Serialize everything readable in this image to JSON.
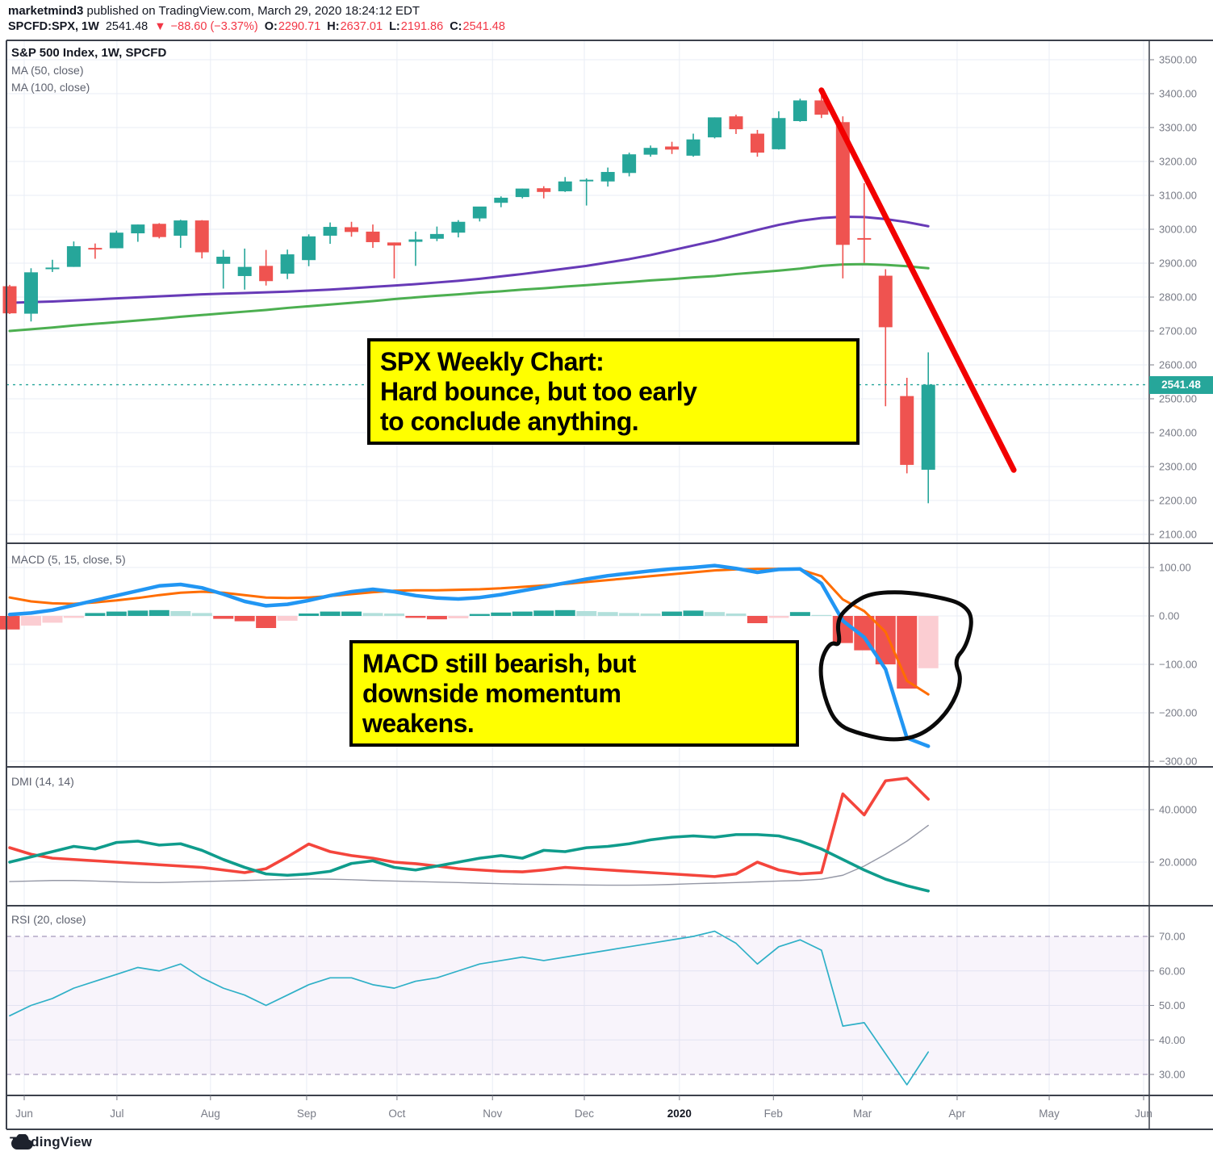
{
  "header": {
    "username": "marketmind3",
    "published": " published on TradingView.com, March 29, 2020 18:24:12 EDT",
    "symbol": "SPCFD:SPX, 1W",
    "last": "2541.48",
    "direction": "▼",
    "change": "−88.60 (−3.37%)",
    "o_label": "O:",
    "open": "2290.71",
    "h_label": "H:",
    "high": "2637.01",
    "l_label": "L:",
    "low": "2191.86",
    "c_label": "C:",
    "close": "2541.48"
  },
  "panes": {
    "main_title": "S&P 500 Index, 1W, SPCFD",
    "ma50_label": "MA (50, close)",
    "ma100_label": "MA (100, close)",
    "macd_label": "MACD (5, 15, close, 5)",
    "dmi_label": "DMI (14, 14)",
    "rsi_label": "RSI (20, close)"
  },
  "annotations": {
    "spx": {
      "lines": [
        "SPX Weekly Chart:",
        "Hard bounce, but too early",
        "to conclude anything."
      ]
    },
    "macd": {
      "lines": [
        "MACD still bearish, but",
        "downside momentum",
        "weakens."
      ]
    }
  },
  "price_label": "2541.48",
  "footer": {
    "brand": "TradingView"
  },
  "colors": {
    "up": "#26a69a",
    "down": "#ef5350",
    "ma50": "#673ab7",
    "ma100": "#4caf50",
    "macd": "#2196f3",
    "signal": "#ff6d00",
    "hist_pos": "#26a69a",
    "hist_pos_weak": "#b2dfdb",
    "hist_neg": "#ef5350",
    "hist_neg_weak": "#fbcdd2",
    "plus_di": "#0f9c8c",
    "minus_di": "#f4453c",
    "adx": "#9598a6",
    "rsi": "#2fb0c7",
    "rsi_band": "rgba(155,100,200,0.07)",
    "rsi_band_line": "#b3a8c6",
    "grid": "#e9edf5",
    "frame": "#3c414c",
    "axis_text": "#787b86",
    "trendline": "#f20000",
    "blob": "#0a0a0a",
    "price_line": "#26a69a",
    "accent_red": "#f23645",
    "dark_text": "#131722"
  },
  "chart_data": {
    "type": "table",
    "description": "SPX weekly candles May 2019 - Mar 2020 with MA50/MA100 overlays, MACD(5,15,close,5), DMI(14,14), RSI(20)",
    "weeks": 44,
    "candles_ohlc": [
      [
        2832,
        2836,
        2750,
        2752
      ],
      [
        2751,
        2885,
        2728,
        2873
      ],
      [
        2886,
        2910,
        2874,
        2887
      ],
      [
        2889,
        2964,
        2889,
        2950
      ],
      [
        2945,
        2958,
        2913,
        2942
      ],
      [
        2944,
        2996,
        2944,
        2990
      ],
      [
        2988,
        3014,
        2963,
        3014
      ],
      [
        3016,
        3018,
        2973,
        2977
      ],
      [
        2981,
        3028,
        2945,
        3026
      ],
      [
        3026,
        3027,
        2914,
        2932
      ],
      [
        2898,
        2939,
        2825,
        2919
      ],
      [
        2862,
        2943,
        2822,
        2889
      ],
      [
        2892,
        2939,
        2834,
        2847
      ],
      [
        2869,
        2940,
        2853,
        2926
      ],
      [
        2909,
        2985,
        2891,
        2979
      ],
      [
        2981,
        3020,
        2957,
        3007
      ],
      [
        3006,
        3022,
        2978,
        2992
      ],
      [
        2993,
        3014,
        2945,
        2962
      ],
      [
        2961,
        2961,
        2855,
        2952
      ],
      [
        2963,
        2993,
        2892,
        2970
      ],
      [
        2972,
        3008,
        2965,
        2986
      ],
      [
        2990,
        3027,
        2976,
        3022
      ],
      [
        3032,
        3066,
        3023,
        3067
      ],
      [
        3078,
        3097,
        3065,
        3093
      ],
      [
        3095,
        3120,
        3091,
        3120
      ],
      [
        3121,
        3127,
        3091,
        3110
      ],
      [
        3112,
        3154,
        3110,
        3141
      ],
      [
        3143,
        3150,
        3070,
        3146
      ],
      [
        3141,
        3182,
        3126,
        3169
      ],
      [
        3166,
        3226,
        3156,
        3221
      ],
      [
        3220,
        3247,
        3214,
        3240
      ],
      [
        3244,
        3258,
        3222,
        3235
      ],
      [
        3217,
        3282,
        3214,
        3265
      ],
      [
        3271,
        3330,
        3268,
        3330
      ],
      [
        3333,
        3338,
        3281,
        3295
      ],
      [
        3282,
        3293,
        3214,
        3226
      ],
      [
        3236,
        3348,
        3235,
        3328
      ],
      [
        3319,
        3385,
        3317,
        3380
      ],
      [
        3380,
        3394,
        3328,
        3338
      ],
      [
        3316,
        3333,
        2855,
        2954
      ],
      [
        2974,
        3136,
        2901,
        2972
      ],
      [
        2863,
        2882,
        2478,
        2711
      ],
      [
        2508,
        2562,
        2280,
        2305
      ],
      [
        2290.71,
        2637.01,
        2191.86,
        2541.48
      ]
    ],
    "ma50": [
      2783,
      2785,
      2787,
      2790,
      2793,
      2796,
      2799,
      2802,
      2805,
      2808,
      2810,
      2812,
      2814,
      2816,
      2819,
      2822,
      2826,
      2830,
      2834,
      2838,
      2843,
      2848,
      2854,
      2861,
      2868,
      2876,
      2884,
      2892,
      2902,
      2912,
      2924,
      2938,
      2952,
      2966,
      2982,
      2998,
      3013,
      3025,
      3033,
      3037,
      3036,
      3030,
      3021,
      3009
    ],
    "ma100": [
      2700,
      2705,
      2710,
      2716,
      2721,
      2726,
      2731,
      2736,
      2742,
      2747,
      2752,
      2757,
      2762,
      2768,
      2773,
      2778,
      2783,
      2788,
      2794,
      2799,
      2804,
      2808,
      2813,
      2817,
      2822,
      2826,
      2831,
      2835,
      2840,
      2844,
      2849,
      2853,
      2858,
      2862,
      2868,
      2873,
      2878,
      2884,
      2892,
      2896,
      2897,
      2895,
      2891,
      2885
    ],
    "macd_line": [
      3,
      6,
      12,
      22,
      32,
      42,
      52,
      62,
      65,
      58,
      45,
      30,
      21,
      24,
      32,
      42,
      50,
      55,
      50,
      42,
      37,
      35,
      38,
      44,
      52,
      60,
      68,
      76,
      83,
      88,
      93,
      97,
      100,
      104,
      98,
      90,
      96,
      97,
      67,
      -10,
      -44,
      -110,
      -252,
      -269
    ],
    "signal_line": [
      38,
      30,
      26,
      25,
      28,
      32,
      37,
      43,
      48,
      50,
      48,
      43,
      38,
      37,
      38,
      41,
      45,
      49,
      52,
      53,
      53,
      54,
      55,
      57,
      60,
      63,
      66,
      70,
      74,
      78,
      82,
      86,
      90,
      94,
      96,
      97,
      97,
      96,
      82,
      34,
      10,
      -33,
      -134,
      -162
    ],
    "histogram": [
      -28,
      -20,
      -14,
      -4,
      6,
      9,
      11,
      12,
      10,
      6,
      -6,
      -11,
      -25,
      -10,
      5,
      9,
      9,
      6,
      5,
      -4,
      -7,
      -5,
      4,
      7,
      9,
      11,
      12,
      10,
      8,
      6,
      5,
      9,
      11,
      8,
      5,
      -15,
      -4,
      8,
      2,
      -56,
      -71,
      -100,
      -150,
      -108
    ],
    "plus_di": [
      20,
      22,
      24,
      26,
      25,
      27.5,
      28,
      26.5,
      27,
      24.5,
      21,
      18,
      15.5,
      15,
      15.5,
      16.5,
      19.5,
      20.5,
      18,
      17,
      18.5,
      20,
      21.5,
      22.5,
      21.5,
      24.5,
      24,
      25.5,
      26,
      27,
      28.5,
      29.5,
      30,
      29.5,
      30.5,
      30.5,
      30,
      28,
      25,
      21,
      17,
      13.5,
      11,
      9
    ],
    "minus_di": [
      25.5,
      23,
      21.5,
      21,
      20.5,
      20,
      19.5,
      19,
      18.5,
      18,
      17,
      16,
      17.5,
      22,
      26.9,
      24,
      22.5,
      21.5,
      20,
      19.4,
      18.5,
      17.5,
      17,
      16.5,
      16.3,
      17,
      18,
      17.5,
      17,
      16.5,
      16,
      15.5,
      15,
      14.5,
      15.5,
      20,
      17,
      15.5,
      16,
      46,
      38,
      51,
      52,
      44
    ],
    "adx": [
      12.6,
      12.8,
      13,
      13,
      12.8,
      12.5,
      12.3,
      12.2,
      12.4,
      12.6,
      12.8,
      13,
      13.2,
      13.4,
      13.6,
      13.5,
      13.3,
      13,
      12.8,
      12.6,
      12.4,
      12.2,
      12,
      11.8,
      11.6,
      11.5,
      11.4,
      11.3,
      11.2,
      11.2,
      11.3,
      11.5,
      11.8,
      12,
      12.2,
      12.5,
      12.8,
      13,
      13.5,
      15,
      18.5,
      23,
      28,
      34
    ],
    "rsi": [
      47,
      50,
      52,
      55,
      57,
      59,
      61,
      60,
      62,
      58,
      55,
      53,
      50,
      53,
      56,
      58,
      58,
      56,
      55,
      57,
      58,
      60,
      62,
      63,
      64,
      63,
      64,
      65,
      66,
      67,
      68,
      69,
      70,
      71.5,
      68,
      62,
      67,
      69,
      66,
      44,
      45,
      36,
      27,
      36.5
    ],
    "last_price": 2541.48,
    "trendline": {
      "week_start": 38.0,
      "price_start": 3410,
      "week_end": 47.0,
      "price_end": 2290
    },
    "blob_points": [
      [
        40.3,
        47
      ],
      [
        41.9,
        50
      ],
      [
        43.6,
        38
      ],
      [
        44.6,
        25
      ],
      [
        45.1,
        -3
      ],
      [
        44.8,
        -62
      ],
      [
        44.2,
        -92
      ],
      [
        44.6,
        -132
      ],
      [
        44.0,
        -195
      ],
      [
        42.8,
        -245
      ],
      [
        41.4,
        -258
      ],
      [
        39.9,
        -245
      ],
      [
        38.7,
        -225
      ],
      [
        38.1,
        -165
      ],
      [
        37.9,
        -98
      ],
      [
        38.4,
        -53
      ],
      [
        38.9,
        -62
      ],
      [
        38.7,
        -8
      ],
      [
        39.4,
        25
      ]
    ],
    "price_axis_ticks": [
      3500,
      3400,
      3300,
      3200,
      3100,
      3000,
      2900,
      2800,
      2700,
      2600,
      2500,
      2400,
      2300,
      2200,
      2100
    ],
    "macd_axis_ticks": [
      100,
      0,
      -100,
      -200,
      -300
    ],
    "dmi_axis_ticks": [
      40,
      20
    ],
    "rsi_axis_ticks": [
      70,
      60,
      50,
      40,
      30
    ],
    "rsi_band": [
      30,
      70
    ],
    "months": [
      {
        "label": "Jun",
        "pos": 0.68
      },
      {
        "label": "Jul",
        "pos": 5.02
      },
      {
        "label": "Aug",
        "pos": 9.4
      },
      {
        "label": "Sep",
        "pos": 13.9
      },
      {
        "label": "Oct",
        "pos": 18.13
      },
      {
        "label": "Nov",
        "pos": 22.6
      },
      {
        "label": "Dec",
        "pos": 26.9
      },
      {
        "label": "2020",
        "pos": 31.35,
        "bold": true
      },
      {
        "label": "Feb",
        "pos": 35.75
      },
      {
        "label": "Mar",
        "pos": 39.92
      },
      {
        "label": "Apr",
        "pos": 44.35
      },
      {
        "label": "May",
        "pos": 48.66
      },
      {
        "label": "Jun",
        "pos": 53.08
      }
    ]
  }
}
